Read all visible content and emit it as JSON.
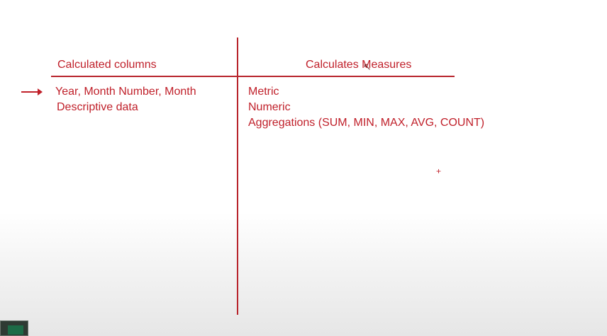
{
  "table": {
    "left_heading": "Calculated columns",
    "right_heading": "Calculates Measures",
    "left_items": [
      "Year, Month Number, Month",
      "Descriptive data"
    ],
    "right_items": [
      "Metric",
      "Numeric",
      "Aggregations (SUM, MIN, MAX, AVG, COUNT)"
    ]
  },
  "icons": {
    "pointer": "arrow-right-icon",
    "cursor": "pen-cursor-icon",
    "marker": "dot-marker-icon",
    "thumbnail": "video-thumbnail-icon"
  },
  "colors": {
    "text": "#c0202a",
    "lines": "#b8242c",
    "background": "#ffffff"
  }
}
